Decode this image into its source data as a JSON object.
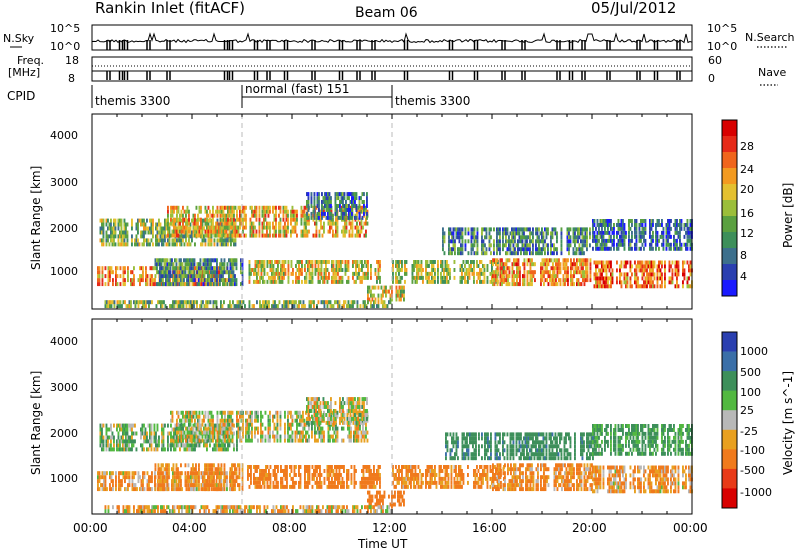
{
  "header": {
    "station": "Rankin Inlet (fitACF)",
    "beam": "Beam 06",
    "date": "05/Jul/2012"
  },
  "time_axis": {
    "ticks": [
      "00:00",
      "04:00",
      "08:00",
      "12:00",
      "16:00",
      "20:00",
      "00:00"
    ],
    "label": "Time UT"
  },
  "noise_panel": {
    "left_label": "N.Sky",
    "right_label": "N.Search",
    "left_ticks": [
      "10^5",
      "10^0"
    ],
    "right_ticks": [
      "10^5",
      "10^0"
    ]
  },
  "freq_panel": {
    "left_label_line1": "Freq.",
    "left_label_line2": "[MHz]",
    "right_label": "Nave",
    "left_ticks": [
      "18",
      "8"
    ],
    "right_ticks": [
      "60",
      "0"
    ]
  },
  "cpid_panel": {
    "label": "CPID",
    "segments": [
      {
        "name": "themis 3300",
        "start_hour": 0,
        "end_hour": 6
      },
      {
        "name": "normal (fast) 151",
        "start_hour": 6,
        "end_hour": 12
      },
      {
        "name": "themis 3300",
        "start_hour": 12,
        "end_hour": 24
      }
    ]
  },
  "power_panel": {
    "ylabel": "Slant Range [km]",
    "yticks": [
      "4000",
      "3000",
      "2000",
      "1000"
    ],
    "colorbar_label": "Power [dB]",
    "colorbar_ticks": [
      "28",
      "24",
      "20",
      "16",
      "12",
      "8",
      "4"
    ],
    "colors": [
      "#1a1aff",
      "#2a3fb0",
      "#3c6f8c",
      "#3d8f5a",
      "#5aa040",
      "#9bbe3a",
      "#e4c030",
      "#f39a20",
      "#f0651c",
      "#e62a18",
      "#d80000"
    ]
  },
  "velocity_panel": {
    "ylabel": "Slant Range [km]",
    "yticks": [
      "4000",
      "3000",
      "2000",
      "1000"
    ],
    "colorbar_label": "Velocity [m s^-1]",
    "colorbar_ticks": [
      "1000",
      "500",
      "100",
      "25",
      "-25",
      "-100",
      "-500",
      "-1000"
    ],
    "colors": [
      "#2a3fb0",
      "#3a6fa8",
      "#3d8f5a",
      "#52b840",
      "#b8b8b8",
      "#e8a020",
      "#f07a1c",
      "#e83a18",
      "#d80000"
    ]
  },
  "chart_data": {
    "type": "heatmap",
    "x_unit": "hours UT",
    "xlim": [
      0,
      24
    ],
    "ylim": [
      180,
      4600
    ],
    "gate_km": 90,
    "series": [
      {
        "name": "Power",
        "bands": [
          {
            "t": [
              0.2,
              5.6
            ],
            "r": [
              700,
              1100
            ],
            "v": 22
          },
          {
            "t": [
              0.3,
              5.8
            ],
            "r": [
              1600,
              2200
            ],
            "v": 14
          },
          {
            "t": [
              2.5,
              6.0
            ],
            "r": [
              700,
              1300
            ],
            "v": 10
          },
          {
            "t": [
              6.2,
              11.5
            ],
            "r": [
              750,
              1250
            ],
            "v": 18
          },
          {
            "t": [
              3.0,
              11.0
            ],
            "r": [
              1800,
              2500
            ],
            "v": 20
          },
          {
            "t": [
              8.5,
              11.0
            ],
            "r": [
              2200,
              2800
            ],
            "v": 8
          },
          {
            "t": [
              11.0,
              12.5
            ],
            "r": [
              350,
              650
            ],
            "v": 18
          },
          {
            "t": [
              12.0,
              16.5
            ],
            "r": [
              750,
              1250
            ],
            "v": 16
          },
          {
            "t": [
              16.0,
              20.0
            ],
            "r": [
              700,
              1300
            ],
            "v": 22
          },
          {
            "t": [
              20.0,
              24.0
            ],
            "r": [
              650,
              1200
            ],
            "v": 24
          },
          {
            "t": [
              14.0,
              20.0
            ],
            "r": [
              1400,
              2000
            ],
            "v": 10
          },
          {
            "t": [
              20.0,
              24.0
            ],
            "r": [
              1500,
              2200
            ],
            "v": 8
          },
          {
            "t": [
              0.5,
              12.0
            ],
            "r": [
              200,
              330
            ],
            "v": 14
          }
        ]
      },
      {
        "name": "Velocity",
        "bands": [
          {
            "t": [
              0.2,
              5.6
            ],
            "r": [
              700,
              1100
            ],
            "v": -80
          },
          {
            "t": [
              0.3,
              5.8
            ],
            "r": [
              1600,
              2200
            ],
            "v": 60
          },
          {
            "t": [
              2.5,
              6.0
            ],
            "r": [
              700,
              1300
            ],
            "v": -150
          },
          {
            "t": [
              6.2,
              11.5
            ],
            "r": [
              750,
              1250
            ],
            "v": -200
          },
          {
            "t": [
              3.0,
              11.0
            ],
            "r": [
              1800,
              2500
            ],
            "v": 0
          },
          {
            "t": [
              8.5,
              11.0
            ],
            "r": [
              2200,
              2800
            ],
            "v": 0
          },
          {
            "t": [
              11.0,
              12.5
            ],
            "r": [
              350,
              650
            ],
            "v": -300
          },
          {
            "t": [
              12.0,
              16.5
            ],
            "r": [
              750,
              1250
            ],
            "v": -150
          },
          {
            "t": [
              16.0,
              20.0
            ],
            "r": [
              700,
              1300
            ],
            "v": -120
          },
          {
            "t": [
              20.0,
              24.0
            ],
            "r": [
              650,
              1200
            ],
            "v": -100
          },
          {
            "t": [
              14.0,
              20.0
            ],
            "r": [
              1400,
              2000
            ],
            "v": 400
          },
          {
            "t": [
              20.0,
              24.0
            ],
            "r": [
              1500,
              2200
            ],
            "v": 150
          },
          {
            "t": [
              0.5,
              12.0
            ],
            "r": [
              200,
              330
            ],
            "v": -60
          }
        ]
      }
    ]
  }
}
